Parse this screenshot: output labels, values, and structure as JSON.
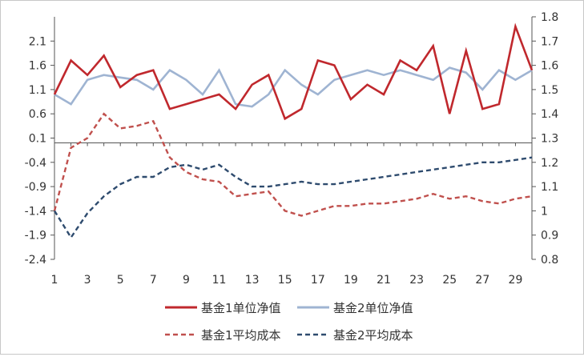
{
  "chart_data": {
    "type": "line",
    "x": [
      1,
      2,
      3,
      4,
      5,
      6,
      7,
      8,
      9,
      10,
      11,
      12,
      13,
      14,
      15,
      16,
      17,
      18,
      19,
      20,
      21,
      22,
      23,
      24,
      25,
      26,
      27,
      28,
      29,
      30
    ],
    "x_tick_labels": [
      "1",
      "3",
      "5",
      "7",
      "9",
      "11",
      "13",
      "15",
      "17",
      "19",
      "21",
      "23",
      "25",
      "27",
      "29"
    ],
    "y_left": {
      "min": -2.4,
      "max": 2.6,
      "ticks": [
        -2.4,
        -1.9,
        -1.4,
        -0.9,
        -0.4,
        0.1,
        0.6,
        1.1,
        1.6,
        2.1
      ],
      "tick_labels": [
        "-2.4",
        "-1.9",
        "-1.4",
        "-0.9",
        "-0.4",
        "0.1",
        "0.6",
        "1.1",
        "1.6",
        "2.1"
      ],
      "zero_line": 0
    },
    "y_right": {
      "min": 0.8,
      "max": 1.8,
      "ticks": [
        0.8,
        0.9,
        1,
        1.1,
        1.2,
        1.3,
        1.4,
        1.5,
        1.6,
        1.7,
        1.8
      ],
      "tick_labels": [
        "0.8",
        "0.9",
        "1",
        "1.1",
        "1.2",
        "1.3",
        "1.4",
        "1.5",
        "1.6",
        "1.7",
        "1.8"
      ]
    },
    "grid": false,
    "legend_position": "bottom",
    "series": [
      {
        "name": "基金1单位净值",
        "axis": "left",
        "style": "solid",
        "color": "#c0282d",
        "values": [
          1.0,
          1.7,
          1.4,
          1.8,
          1.15,
          1.4,
          1.5,
          0.7,
          0.8,
          0.9,
          1.0,
          0.7,
          1.2,
          1.4,
          0.5,
          0.7,
          1.7,
          1.6,
          0.9,
          1.2,
          1.0,
          1.7,
          1.5,
          2.0,
          0.6,
          1.9,
          0.7,
          0.8,
          2.4,
          1.5
        ]
      },
      {
        "name": "基金2单位净值",
        "axis": "left",
        "style": "solid",
        "color": "#9fb4d2",
        "values": [
          1.0,
          0.8,
          1.3,
          1.4,
          1.35,
          1.3,
          1.1,
          1.5,
          1.3,
          1.0,
          1.5,
          0.8,
          0.75,
          1.0,
          1.5,
          1.2,
          1.0,
          1.3,
          1.4,
          1.5,
          1.4,
          1.5,
          1.4,
          1.3,
          1.55,
          1.45,
          1.1,
          1.5,
          1.3,
          1.5
        ]
      },
      {
        "name": "基金1平均成本",
        "axis": "right",
        "style": "dashed",
        "color": "#c0504d",
        "values": [
          1.0,
          1.26,
          1.3,
          1.4,
          1.34,
          1.35,
          1.37,
          1.22,
          1.16,
          1.13,
          1.12,
          1.06,
          1.07,
          1.08,
          1.0,
          0.98,
          1.0,
          1.02,
          1.02,
          1.03,
          1.03,
          1.04,
          1.05,
          1.07,
          1.05,
          1.06,
          1.04,
          1.03,
          1.05,
          1.06
        ]
      },
      {
        "name": "基金2平均成本",
        "axis": "right",
        "style": "dashed",
        "color": "#2e4b6e",
        "values": [
          1.0,
          0.89,
          0.99,
          1.06,
          1.11,
          1.14,
          1.14,
          1.18,
          1.19,
          1.17,
          1.19,
          1.14,
          1.1,
          1.1,
          1.11,
          1.12,
          1.11,
          1.11,
          1.12,
          1.13,
          1.14,
          1.15,
          1.16,
          1.17,
          1.18,
          1.19,
          1.2,
          1.2,
          1.21,
          1.22
        ]
      }
    ]
  }
}
